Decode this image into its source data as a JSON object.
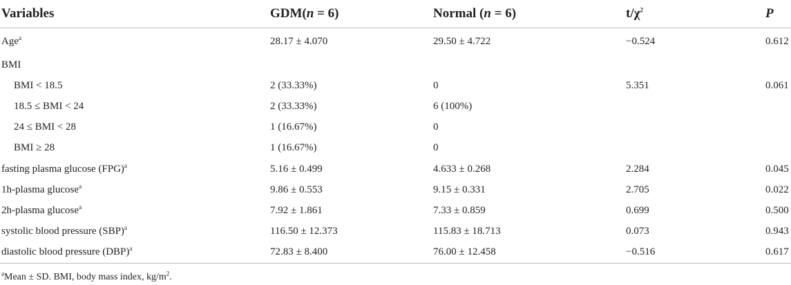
{
  "header": {
    "variables": "Variables",
    "gdm_prefix": "GDM(",
    "gdm_n": "n",
    "gdm_suffix": " = 6)",
    "normal_prefix": "Normal (",
    "normal_n": "n",
    "normal_suffix": " = 6)",
    "t_label": "t/χ",
    "t_sup": "2",
    "p_label": "P"
  },
  "rows": [
    {
      "label": "Age",
      "sup": "a",
      "gdm": "28.17 ± 4.070",
      "normal": "29.50 ± 4.722",
      "t": "−0.524",
      "p": "0.612",
      "indent": false
    },
    {
      "label": "BMI",
      "sup": "",
      "gdm": "",
      "normal": "",
      "t": "",
      "p": "",
      "indent": false
    },
    {
      "label": "BMI < 18.5",
      "sup": "",
      "gdm": "2 (33.33%)",
      "normal": "0",
      "t": "5.351",
      "p": "0.061",
      "indent": true
    },
    {
      "label": "18.5 ≤ BMI < 24",
      "sup": "",
      "gdm": "2 (33.33%)",
      "normal": "6 (100%)",
      "t": "",
      "p": "",
      "indent": true
    },
    {
      "label": "24 ≤ BMI < 28",
      "sup": "",
      "gdm": "1 (16.67%)",
      "normal": "0",
      "t": "",
      "p": "",
      "indent": true
    },
    {
      "label": "BMI ≥ 28",
      "sup": "",
      "gdm": "1 (16.67%)",
      "normal": "0",
      "t": "",
      "p": "",
      "indent": true
    },
    {
      "label": "fasting plasma glucose (FPG)",
      "sup": "a",
      "gdm": "5.16 ± 0.499",
      "normal": "4.633 ± 0.268",
      "t": "2.284",
      "p": "0.045",
      "indent": false
    },
    {
      "label": "1h-plasma glucose",
      "sup": "a",
      "gdm": "9.86 ± 0.553",
      "normal": "9.15 ± 0.331",
      "t": "2.705",
      "p": "0.022",
      "indent": false
    },
    {
      "label": "2h-plasma glucose",
      "sup": "a",
      "gdm": "7.92 ± 1.861",
      "normal": "7.33 ± 0.859",
      "t": "0.699",
      "p": "0.500",
      "indent": false
    },
    {
      "label": "systolic blood pressure (SBP)",
      "sup": "a",
      "gdm": "116.50 ± 12.373",
      "normal": "115.83 ± 18.713",
      "t": "0.073",
      "p": "0.943",
      "indent": false
    },
    {
      "label": "diastolic blood pressure (DBP)",
      "sup": "a",
      "gdm": "72.83 ± 8.400",
      "normal": "76.00 ± 12.458",
      "t": "−0.516",
      "p": "0.617",
      "indent": false
    }
  ],
  "footnote": {
    "sup": "a",
    "text": "Mean ± SD. BMI, body mass index, kg/m",
    "sup2": "2",
    "end": "."
  }
}
